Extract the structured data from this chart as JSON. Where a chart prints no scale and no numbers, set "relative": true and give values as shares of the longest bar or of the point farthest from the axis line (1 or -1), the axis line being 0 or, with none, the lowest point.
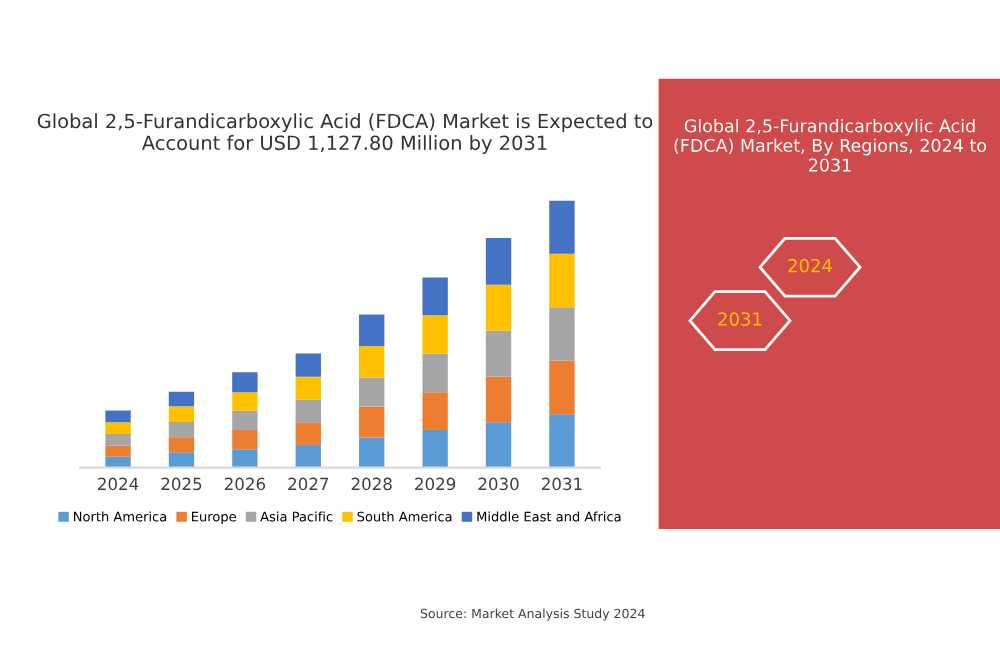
{
  "chart_data": {
    "type": "bar",
    "title": "Global 2,5-Furandicarboxylic Acid (FDCA) Market is Expected to Account for USD 1,127.80 Million by 2031",
    "categories": [
      "2024",
      "2025",
      "2026",
      "2027",
      "2028",
      "2029",
      "2030",
      "2031"
    ],
    "stacked": true,
    "relative": true,
    "grid": false,
    "legend": "bottom",
    "series": [
      {
        "name": "North America",
        "color": "#5b9bd5",
        "values": [
          0.041,
          0.057,
          0.069,
          0.085,
          0.113,
          0.141,
          0.17,
          0.2
        ]
      },
      {
        "name": "Europe",
        "color": "#ed7d31",
        "values": [
          0.041,
          0.057,
          0.072,
          0.085,
          0.116,
          0.141,
          0.17,
          0.2
        ]
      },
      {
        "name": "Asia Pacific",
        "color": "#a5a5a5",
        "values": [
          0.044,
          0.057,
          0.072,
          0.085,
          0.108,
          0.144,
          0.172,
          0.2
        ]
      },
      {
        "name": "South America",
        "color": "#ffc000",
        "values": [
          0.044,
          0.059,
          0.069,
          0.085,
          0.118,
          0.144,
          0.172,
          0.2
        ]
      },
      {
        "name": "Middle East and Africa",
        "color": "#4472c4",
        "values": [
          0.044,
          0.054,
          0.075,
          0.087,
          0.118,
          0.141,
          0.175,
          0.2
        ]
      }
    ],
    "annotations": [
      "Global 2,5-Furandicarboxylic Acid (FDCA) Market, By Regions, 2024 to 2031",
      "2031",
      "2024",
      "Source: Market Analysis Study 2024"
    ]
  }
}
